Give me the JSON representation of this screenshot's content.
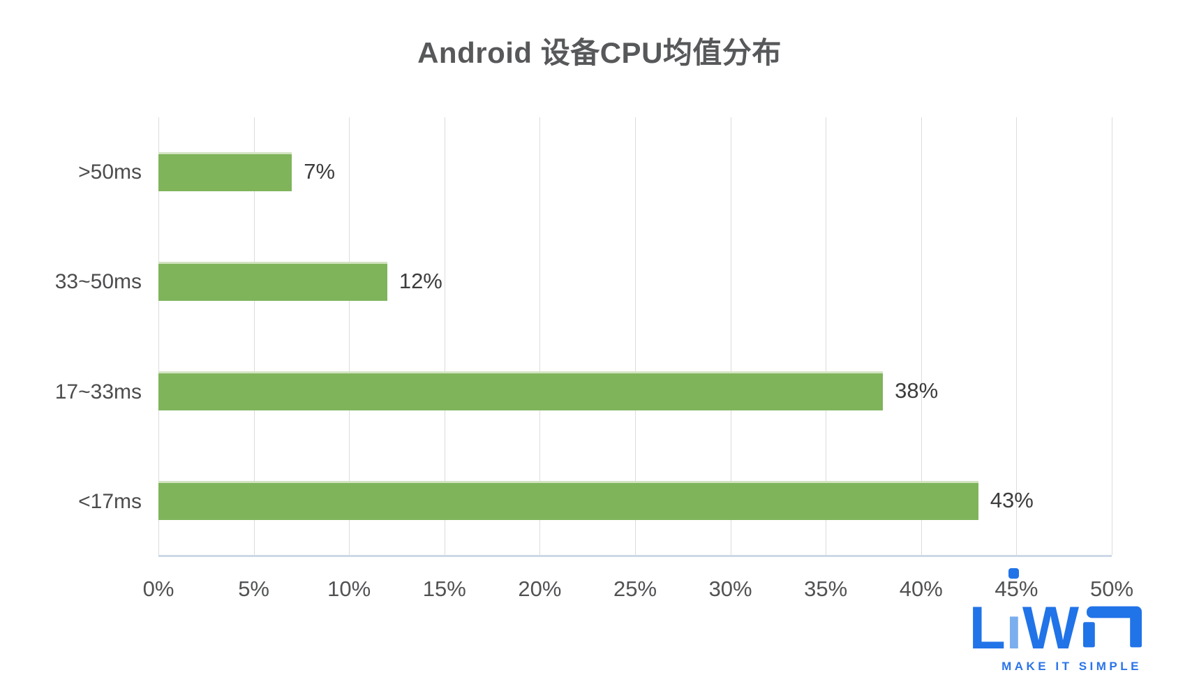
{
  "title": "Android 设备CPU均值分布",
  "chart_data": {
    "type": "bar",
    "orientation": "horizontal",
    "title": "Android 设备CPU均值分布",
    "categories": [
      ">50ms",
      "33~50ms",
      "17~33ms",
      "<17ms"
    ],
    "values": [
      7,
      12,
      38,
      43
    ],
    "value_labels": [
      "7%",
      "12%",
      "38%",
      "43%"
    ],
    "xlabel": "",
    "ylabel": "",
    "xlim": [
      0,
      50
    ],
    "x_ticks": [
      "0%",
      "5%",
      "10%",
      "15%",
      "20%",
      "25%",
      "30%",
      "35%",
      "40%",
      "45%",
      "50%"
    ],
    "grid": "vertical-only",
    "legend": "none",
    "bar_color": "#7fb45b",
    "bar_edge_color": "#d3e3c1",
    "gridline_color": "#dcdcdc",
    "axis_line_color": "#ccd7e7",
    "label_color": "#4c4c4e"
  },
  "logo": {
    "wordmark": "LiWA",
    "part_l": "L",
    "part_i": "ı",
    "part_w": "W",
    "tagline": "MAKE IT SIMPLE",
    "blue": "#2173e8",
    "light_blue": "#7aaeee"
  }
}
